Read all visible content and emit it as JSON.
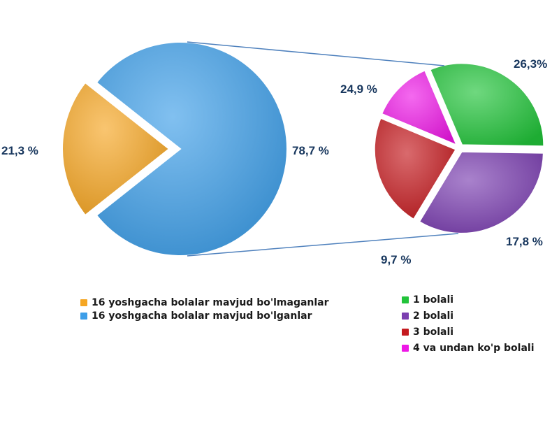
{
  "chart_data": [
    {
      "type": "pie",
      "slices": [
        {
          "label": "16 yoshgacha bolalar mavjud bo'lmaganlar",
          "value": 21.3,
          "value_label": "21,3 %",
          "color": "#f5a623",
          "exploded": true
        },
        {
          "label": "16 yoshgacha bolalar mavjud bo'lganlar",
          "value": 78.7,
          "value_label": "78,7 %",
          "color": "#3d9ee8",
          "exploded": false
        }
      ]
    },
    {
      "type": "pie",
      "slices": [
        {
          "label": "1 bolali",
          "value": 24.9,
          "value_label": "24,9 %",
          "color": "#22c33a"
        },
        {
          "label": "2 bolali",
          "value": 26.3,
          "value_label": "26,3%",
          "color": "#7b3fb0"
        },
        {
          "label": "3 bolali",
          "value": 17.8,
          "value_label": "17,8 %",
          "color": "#c41a1f"
        },
        {
          "label": "4 va undan ko'p bolali",
          "value": 9.7,
          "value_label": "9,7 %",
          "color": "#ee18e6"
        }
      ]
    }
  ],
  "legend_left": [
    {
      "label": "16 yoshgacha bolalar mavjud bo'lmaganlar",
      "color": "#f5a623"
    },
    {
      "label": "16 yoshgacha bolalar mavjud bo'lganlar",
      "color": "#3d9ee8"
    }
  ],
  "legend_right": [
    {
      "label": "1 bolali",
      "color": "#22c33a"
    },
    {
      "label": "2 bolali",
      "color": "#7b3fb0"
    },
    {
      "label": "3 bolali",
      "color": "#c41a1f"
    },
    {
      "label": "4 va undan ko'p bolali",
      "color": "#ee18e6"
    }
  ],
  "connector_color": "#4f81bd"
}
